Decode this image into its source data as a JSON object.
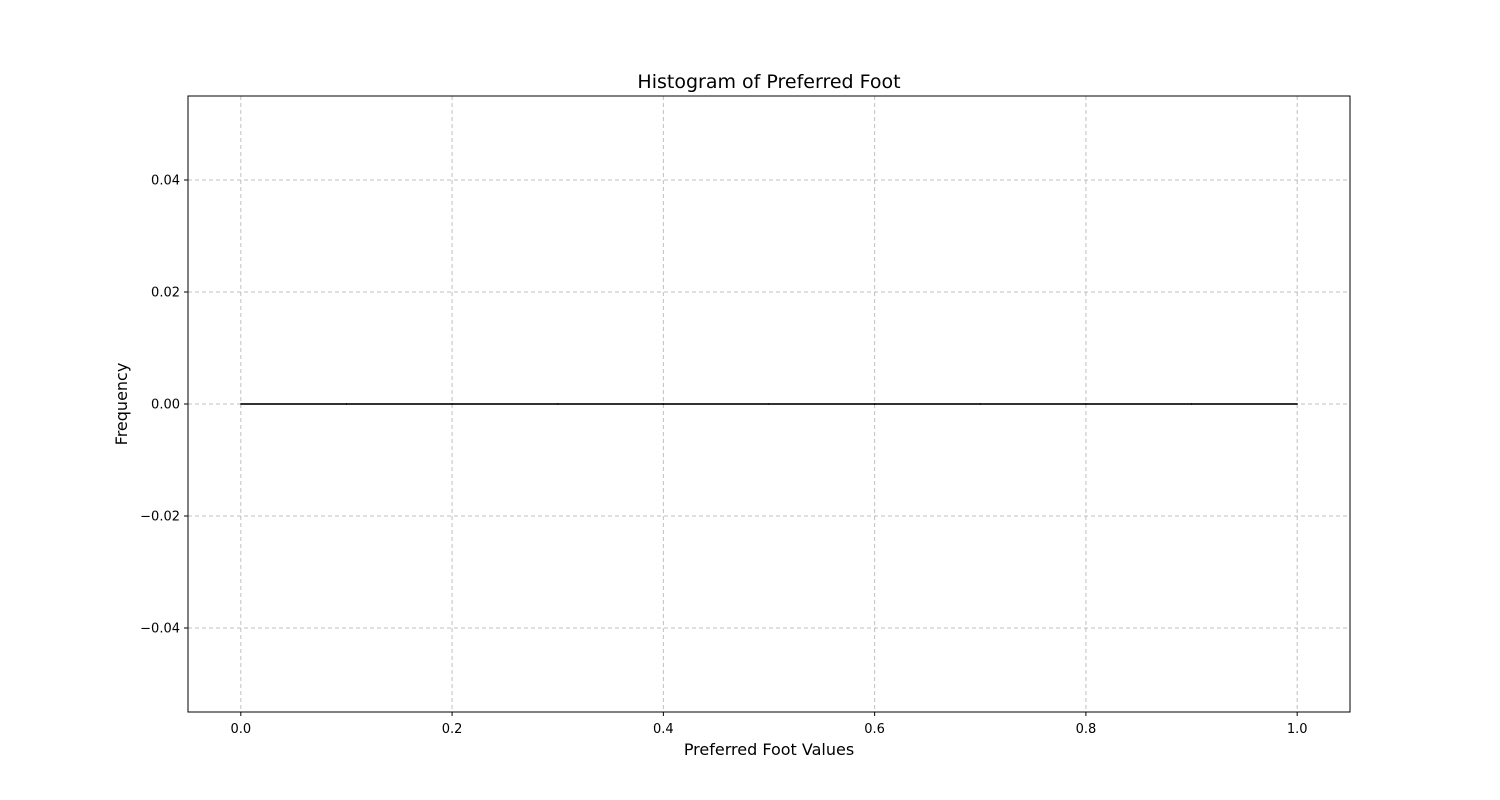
{
  "chart_data": {
    "type": "bar",
    "title": "Histogram of Preferred Foot",
    "xlabel": "Preferred Foot Values",
    "ylabel": "Frequency",
    "xlim": [
      -0.05,
      1.05
    ],
    "ylim": [
      -0.055,
      0.055
    ],
    "grid": true,
    "bins": [
      {
        "x0": 0.0,
        "x1": 0.1,
        "value": 0
      },
      {
        "x0": 0.1,
        "x1": 0.2,
        "value": 0
      },
      {
        "x0": 0.2,
        "x1": 0.3,
        "value": 0
      },
      {
        "x0": 0.3,
        "x1": 0.4,
        "value": 0
      },
      {
        "x0": 0.4,
        "x1": 0.5,
        "value": 0
      },
      {
        "x0": 0.5,
        "x1": 0.6,
        "value": 0
      },
      {
        "x0": 0.6,
        "x1": 0.7,
        "value": 0
      },
      {
        "x0": 0.7,
        "x1": 0.8,
        "value": 0
      },
      {
        "x0": 0.8,
        "x1": 0.9,
        "value": 0
      },
      {
        "x0": 0.9,
        "x1": 1.0,
        "value": 0
      }
    ],
    "x_ticks": [
      {
        "value": 0.0,
        "label": "0.0"
      },
      {
        "value": 0.2,
        "label": "0.2"
      },
      {
        "value": 0.4,
        "label": "0.4"
      },
      {
        "value": 0.6,
        "label": "0.6"
      },
      {
        "value": 0.8,
        "label": "0.8"
      },
      {
        "value": 1.0,
        "label": "1.0"
      }
    ],
    "y_ticks": [
      {
        "value": 0.04,
        "label": "0.04"
      },
      {
        "value": 0.02,
        "label": "0.02"
      },
      {
        "value": 0.0,
        "label": "0.00"
      },
      {
        "value": -0.02,
        "label": "−0.02"
      },
      {
        "value": -0.04,
        "label": "−0.04"
      }
    ],
    "colors": {
      "bar_fill": "#1f77b4",
      "bar_edge": "#000000",
      "grid": "#b0b0b0"
    }
  }
}
